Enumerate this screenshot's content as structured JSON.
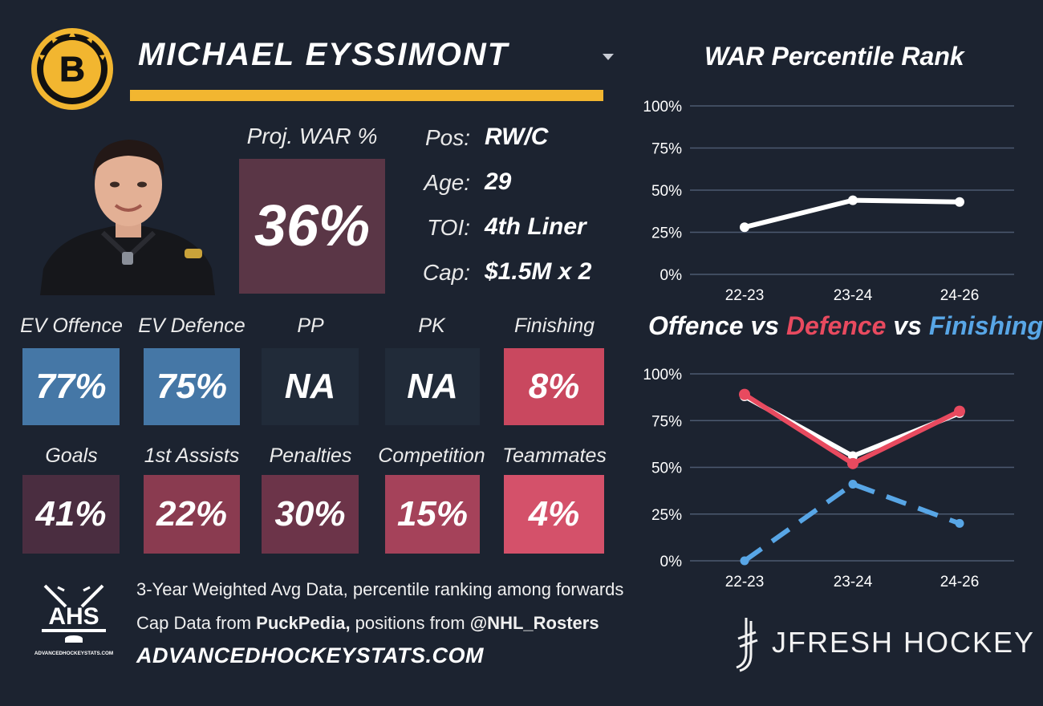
{
  "player": {
    "name": "MICHAEL EYSSIMONT",
    "team_logo_text": "B"
  },
  "projected": {
    "label": "Proj. WAR %",
    "value": "36%"
  },
  "info": [
    {
      "label": "Pos:",
      "value": "RW/C"
    },
    {
      "label": "Age:",
      "value": "29"
    },
    {
      "label": "TOI:",
      "value": "4th Liner"
    },
    {
      "label": "Cap:",
      "value": "$1.5M x 2"
    }
  ],
  "metrics_row1": [
    {
      "label": "EV Offence",
      "value": "77%",
      "color": "#4577a6"
    },
    {
      "label": "EV Defence",
      "value": "75%",
      "color": "#4577a6"
    },
    {
      "label": "PP",
      "value": "NA",
      "color": "#212b39"
    },
    {
      "label": "PK",
      "value": "NA",
      "color": "#212b39"
    },
    {
      "label": "Finishing",
      "value": "8%",
      "color": "#c9485f"
    }
  ],
  "metrics_row2": [
    {
      "label": "Goals",
      "value": "41%",
      "color": "#4a2d40"
    },
    {
      "label": "1st Assists",
      "value": "22%",
      "color": "#8a3b50"
    },
    {
      "label": "Penalties",
      "value": "30%",
      "color": "#6c3449"
    },
    {
      "label": "Competition",
      "value": "15%",
      "color": "#a5425a"
    },
    {
      "label": "Teammates",
      "value": "4%",
      "color": "#d4516a"
    }
  ],
  "footer": {
    "ahs_logo_text": "AHS",
    "ahs_logo_subtext": "ADVANCEDHOCKEYSTATS.COM",
    "line1": "3-Year Weighted Avg Data, percentile ranking among forwards",
    "line2_prefix": "Cap Data from ",
    "line2_bold1": "PuckPedia,",
    "line2_mid": " positions from ",
    "line2_bold2": "@NHL_Rosters",
    "site": "ADVANCEDHOCKEYSTATS.COM",
    "brand": "JFRESH HOCKEY"
  },
  "colors": {
    "background": "#1c2330",
    "accent_gold": "#f2b630",
    "offence_line": "#ffffff",
    "defence_line": "#e84a5f",
    "finishing_line": "#58a6e6",
    "gridline": "#4c5a70"
  },
  "chart_data": [
    {
      "type": "line",
      "title": "WAR Percentile Rank",
      "categories": [
        "22-23",
        "23-24",
        "24-26"
      ],
      "series": [
        {
          "values": [
            28,
            44,
            43
          ]
        }
      ],
      "ylim": [
        0,
        100
      ],
      "yticks": [
        "0%",
        "25%",
        "50%",
        "75%",
        "100%"
      ],
      "grid": true
    },
    {
      "type": "line",
      "title_parts": [
        "Offence",
        " vs ",
        "Defence",
        " vs ",
        "Finishing"
      ],
      "categories": [
        "22-23",
        "23-24",
        "24-26"
      ],
      "series": [
        {
          "name": "Offence",
          "values": [
            88,
            56,
            79
          ]
        },
        {
          "name": "Defence",
          "values": [
            89,
            52,
            80
          ]
        },
        {
          "name": "Finishing",
          "values": [
            0,
            41,
            20
          ]
        }
      ],
      "ylim": [
        0,
        100
      ],
      "yticks": [
        "0%",
        "25%",
        "50%",
        "75%",
        "100%"
      ],
      "grid": true
    }
  ]
}
